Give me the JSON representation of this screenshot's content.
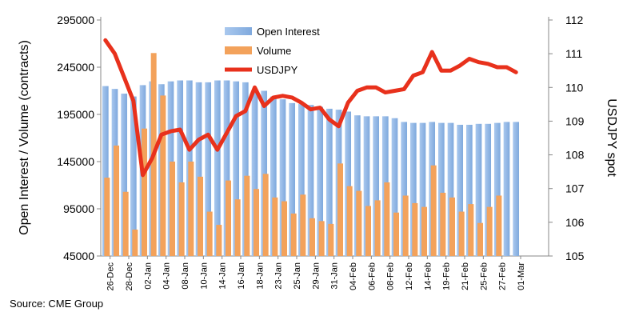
{
  "chart_data": {
    "type": "bar",
    "source": "Source: CME Group",
    "ylabel_left": "Open Interest / Volume (contracts)",
    "ylabel_right": "USDJPY spot",
    "ylim_left": [
      45000,
      295000
    ],
    "yticks_left": [
      "45000",
      "95000",
      "145000",
      "195000",
      "245000",
      "295000"
    ],
    "ylim_right": [
      105,
      112
    ],
    "yticks_right": [
      "105",
      "106",
      "107",
      "108",
      "109",
      "110",
      "111",
      "112"
    ],
    "xtick_labels": [
      "26-Dec",
      "28-Dec",
      "02-Jan",
      "04-Jan",
      "08-Jan",
      "10-Jan",
      "14-Jan",
      "16-Jan",
      "18-Jan",
      "23-Jan",
      "25-Jan",
      "29-Jan",
      "31-Jan",
      "04-Feb",
      "06-Feb",
      "08-Feb",
      "12-Feb",
      "14-Feb",
      "19-Feb",
      "21-Feb",
      "25-Feb",
      "27-Feb",
      "01-Mar"
    ],
    "legend_placement": "top-center",
    "series": [
      {
        "name": "Open Interest",
        "color": "#7fa9dd",
        "values": [
          225000,
          222000,
          217000,
          214000,
          226000,
          230000,
          227000,
          230000,
          231000,
          231000,
          229000,
          229000,
          231000,
          231000,
          230000,
          229000,
          221000,
          220000,
          214000,
          211000,
          207000,
          206000,
          205000,
          203000,
          201000,
          200000,
          198000,
          194000,
          193000,
          193000,
          193000,
          191000,
          187000,
          186000,
          186000,
          187000,
          186000,
          186000,
          184000,
          184000,
          185000,
          185000,
          186000,
          187000,
          187000,
          null,
          null,
          null
        ]
      },
      {
        "name": "Volume",
        "color": "#f3a25b",
        "values": [
          128000,
          162000,
          113000,
          73000,
          180000,
          260000,
          215000,
          145000,
          123000,
          145000,
          129000,
          92000,
          78000,
          125000,
          105000,
          130000,
          116000,
          132000,
          107000,
          103000,
          90000,
          110000,
          85000,
          82000,
          79000,
          143000,
          119000,
          114000,
          98000,
          104000,
          123000,
          91000,
          109000,
          101000,
          97000,
          141000,
          112000,
          107000,
          92000,
          100000,
          80000,
          97000,
          109000,
          null,
          null,
          null,
          null,
          null
        ]
      },
      {
        "name": "USDJPY",
        "color": "#e8311c",
        "values": [
          111.4,
          111.0,
          110.3,
          109.6,
          107.4,
          107.9,
          108.6,
          108.7,
          108.75,
          108.15,
          108.45,
          108.6,
          108.15,
          108.65,
          109.15,
          109.3,
          110.0,
          109.45,
          109.7,
          109.75,
          109.7,
          109.55,
          109.35,
          109.4,
          109.05,
          108.85,
          109.55,
          109.9,
          110.0,
          110.0,
          109.85,
          109.9,
          109.95,
          110.35,
          110.45,
          111.05,
          110.5,
          110.5,
          110.65,
          110.85,
          110.75,
          110.7,
          110.6,
          110.6,
          110.45,
          null,
          null,
          null
        ]
      }
    ]
  }
}
